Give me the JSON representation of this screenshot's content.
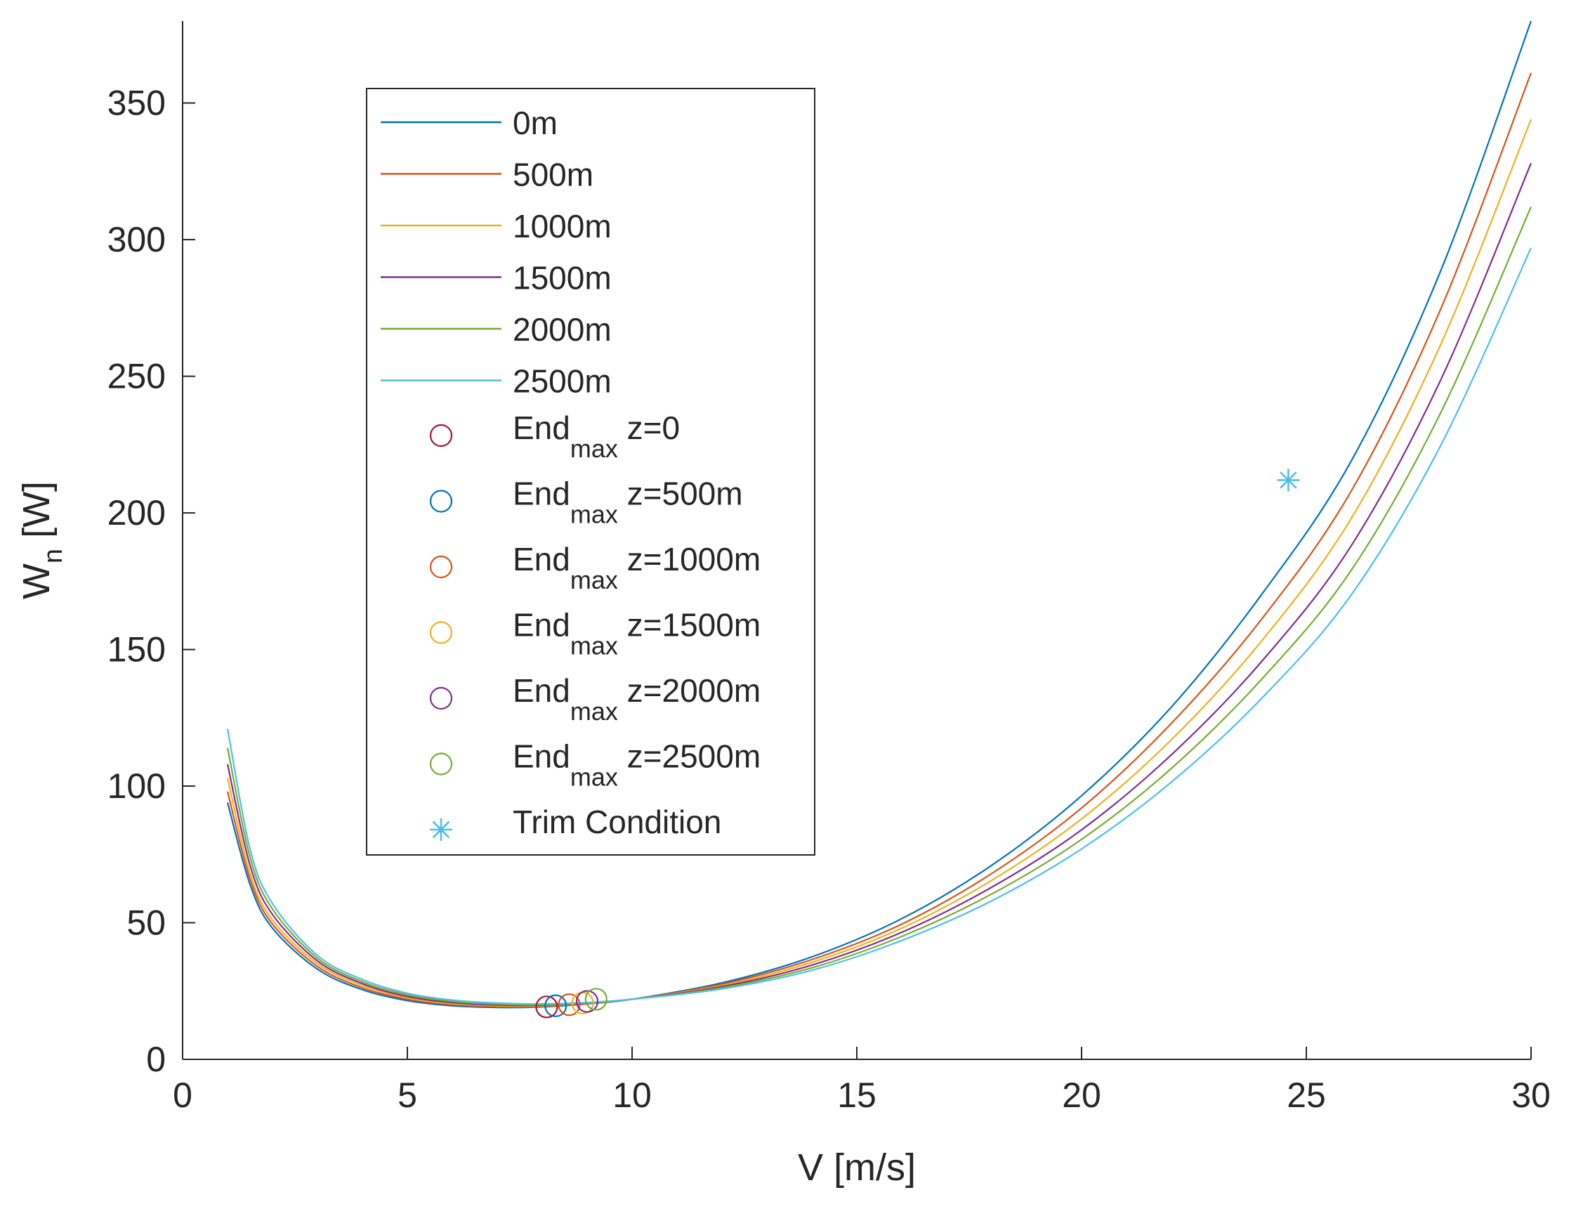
{
  "chart_data": {
    "type": "line",
    "xlabel": "V [m/s]",
    "ylabel": {
      "base": "W",
      "sub": "n",
      "rest": " [W]"
    },
    "xlim": [
      0,
      30
    ],
    "ylim": [
      0,
      380
    ],
    "xticks": [
      0,
      5,
      10,
      15,
      20,
      25,
      30
    ],
    "yticks": [
      0,
      50,
      100,
      150,
      200,
      250,
      300,
      350
    ],
    "grid": false,
    "legend_position": "top-left inside",
    "series": [
      {
        "name": "0m",
        "color": "#0072BD",
        "x": [
          1.0,
          1.5,
          2,
          3,
          4,
          5,
          6,
          7,
          8,
          9,
          10,
          12,
          14,
          16,
          18,
          20,
          22,
          24,
          26,
          28,
          30
        ],
        "y": [
          94.0,
          64.0,
          48.0,
          33.0,
          25.5,
          21.5,
          19.6,
          19.0,
          19.2,
          20.3,
          22.0,
          28.0,
          37.5,
          51.5,
          71.0,
          96.5,
          129.0,
          170.0,
          219.0,
          289.0,
          380.0
        ]
      },
      {
        "name": "500m",
        "color": "#D95319",
        "x": [
          1.0,
          1.5,
          2,
          3,
          4,
          5,
          6,
          7,
          8,
          9,
          10,
          12,
          14,
          16,
          18,
          20,
          22,
          24,
          26,
          28,
          30
        ],
        "y": [
          98.0,
          66.0,
          49.5,
          34.0,
          26.2,
          22.0,
          20.0,
          19.3,
          19.4,
          20.4,
          22.0,
          27.5,
          36.5,
          49.5,
          68.0,
          92.0,
          123.0,
          161.0,
          208.0,
          275.0,
          361.0
        ]
      },
      {
        "name": "1000m",
        "color": "#EDB120",
        "x": [
          1.0,
          1.5,
          2,
          3,
          4,
          5,
          6,
          7,
          8,
          9,
          10,
          12,
          14,
          16,
          18,
          20,
          22,
          24,
          26,
          28,
          30
        ],
        "y": [
          103.0,
          68.0,
          51.0,
          35.0,
          27.0,
          22.5,
          20.4,
          19.6,
          19.6,
          20.5,
          22.0,
          27.0,
          35.5,
          48.0,
          65.5,
          88.0,
          117.0,
          153.0,
          198.0,
          262.0,
          344.0
        ]
      },
      {
        "name": "1500m",
        "color": "#7E2F8E",
        "x": [
          1.0,
          1.5,
          2,
          3,
          4,
          5,
          6,
          7,
          8,
          9,
          10,
          12,
          14,
          16,
          18,
          20,
          22,
          24,
          26,
          28,
          30
        ],
        "y": [
          108.0,
          71.0,
          53.0,
          36.0,
          27.7,
          23.0,
          20.8,
          19.9,
          19.8,
          20.6,
          22.0,
          26.6,
          34.5,
          46.5,
          63.0,
          84.0,
          111.5,
          145.5,
          188.0,
          249.0,
          328.0
        ]
      },
      {
        "name": "2000m",
        "color": "#77AC30",
        "x": [
          1.0,
          1.5,
          2,
          3,
          4,
          5,
          6,
          7,
          8,
          9,
          10,
          12,
          14,
          16,
          18,
          20,
          22,
          24,
          26,
          28,
          30
        ],
        "y": [
          114.0,
          74.0,
          55.0,
          37.0,
          28.4,
          23.6,
          21.2,
          20.2,
          20.0,
          20.7,
          22.0,
          26.2,
          33.5,
          45.0,
          60.5,
          80.5,
          106.5,
          139.0,
          179.0,
          237.0,
          312.0
        ]
      },
      {
        "name": "2500m",
        "color": "#4DBEEE",
        "x": [
          1.0,
          1.5,
          2,
          3,
          4,
          5,
          6,
          7,
          8,
          9,
          10,
          12,
          14,
          16,
          18,
          20,
          22,
          24,
          26,
          28,
          30
        ],
        "y": [
          121.0,
          77.0,
          57.0,
          38.0,
          29.2,
          24.2,
          21.7,
          20.6,
          20.3,
          20.8,
          22.0,
          25.8,
          32.6,
          43.5,
          58.0,
          77.0,
          101.5,
          132.0,
          170.0,
          225.0,
          297.0
        ]
      }
    ],
    "markers": [
      {
        "label_base": "End",
        "label_sub": "max",
        "label_rest": " z=0",
        "x": 8.1,
        "y": 19.2,
        "shape": "circle",
        "color": "#A2142F"
      },
      {
        "label_base": "End",
        "label_sub": "max",
        "label_rest": " z=500m",
        "x": 8.3,
        "y": 19.6,
        "shape": "circle",
        "color": "#0072BD"
      },
      {
        "label_base": "End",
        "label_sub": "max",
        "label_rest": " z=1000m",
        "x": 8.6,
        "y": 20.0,
        "shape": "circle",
        "color": "#D95319"
      },
      {
        "label_base": "End",
        "label_sub": "max",
        "label_rest": " z=1500m",
        "x": 8.9,
        "y": 20.6,
        "shape": "circle",
        "color": "#EDB120"
      },
      {
        "label_base": "End",
        "label_sub": "max",
        "label_rest": " z=2000m",
        "x": 9.0,
        "y": 21.2,
        "shape": "circle",
        "color": "#7E2F8E"
      },
      {
        "label_base": "End",
        "label_sub": "max",
        "label_rest": " z=2500m",
        "x": 9.2,
        "y": 22.0,
        "shape": "circle",
        "color": "#77AC30"
      },
      {
        "label_base": "Trim Condition",
        "label_sub": "",
        "label_rest": "",
        "x": 24.6,
        "y": 212.0,
        "shape": "asterisk",
        "color": "#4DBEEE"
      }
    ]
  }
}
